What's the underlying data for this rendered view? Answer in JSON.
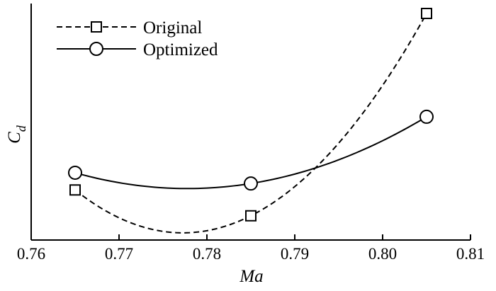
{
  "chart_data": {
    "type": "line",
    "xlabel": "Ma",
    "ylabel_main": "C",
    "ylabel_sub": "d",
    "xlim": [
      0.76,
      0.81
    ],
    "xticks": [
      "0.76",
      "0.77",
      "0.78",
      "0.79",
      "0.80",
      "0.81"
    ],
    "ylim": [
      0,
      1
    ],
    "legend_position": "top-left",
    "series": [
      {
        "name": "Original",
        "line_style": "dashed",
        "marker": "square",
        "x": [
          0.765,
          0.785,
          0.805
        ],
        "y": [
          0.18,
          0.06,
          1.0
        ]
      },
      {
        "name": "Optimized",
        "line_style": "solid",
        "marker": "circle",
        "x": [
          0.765,
          0.785,
          0.805
        ],
        "y": [
          0.26,
          0.21,
          0.52
        ]
      }
    ]
  }
}
